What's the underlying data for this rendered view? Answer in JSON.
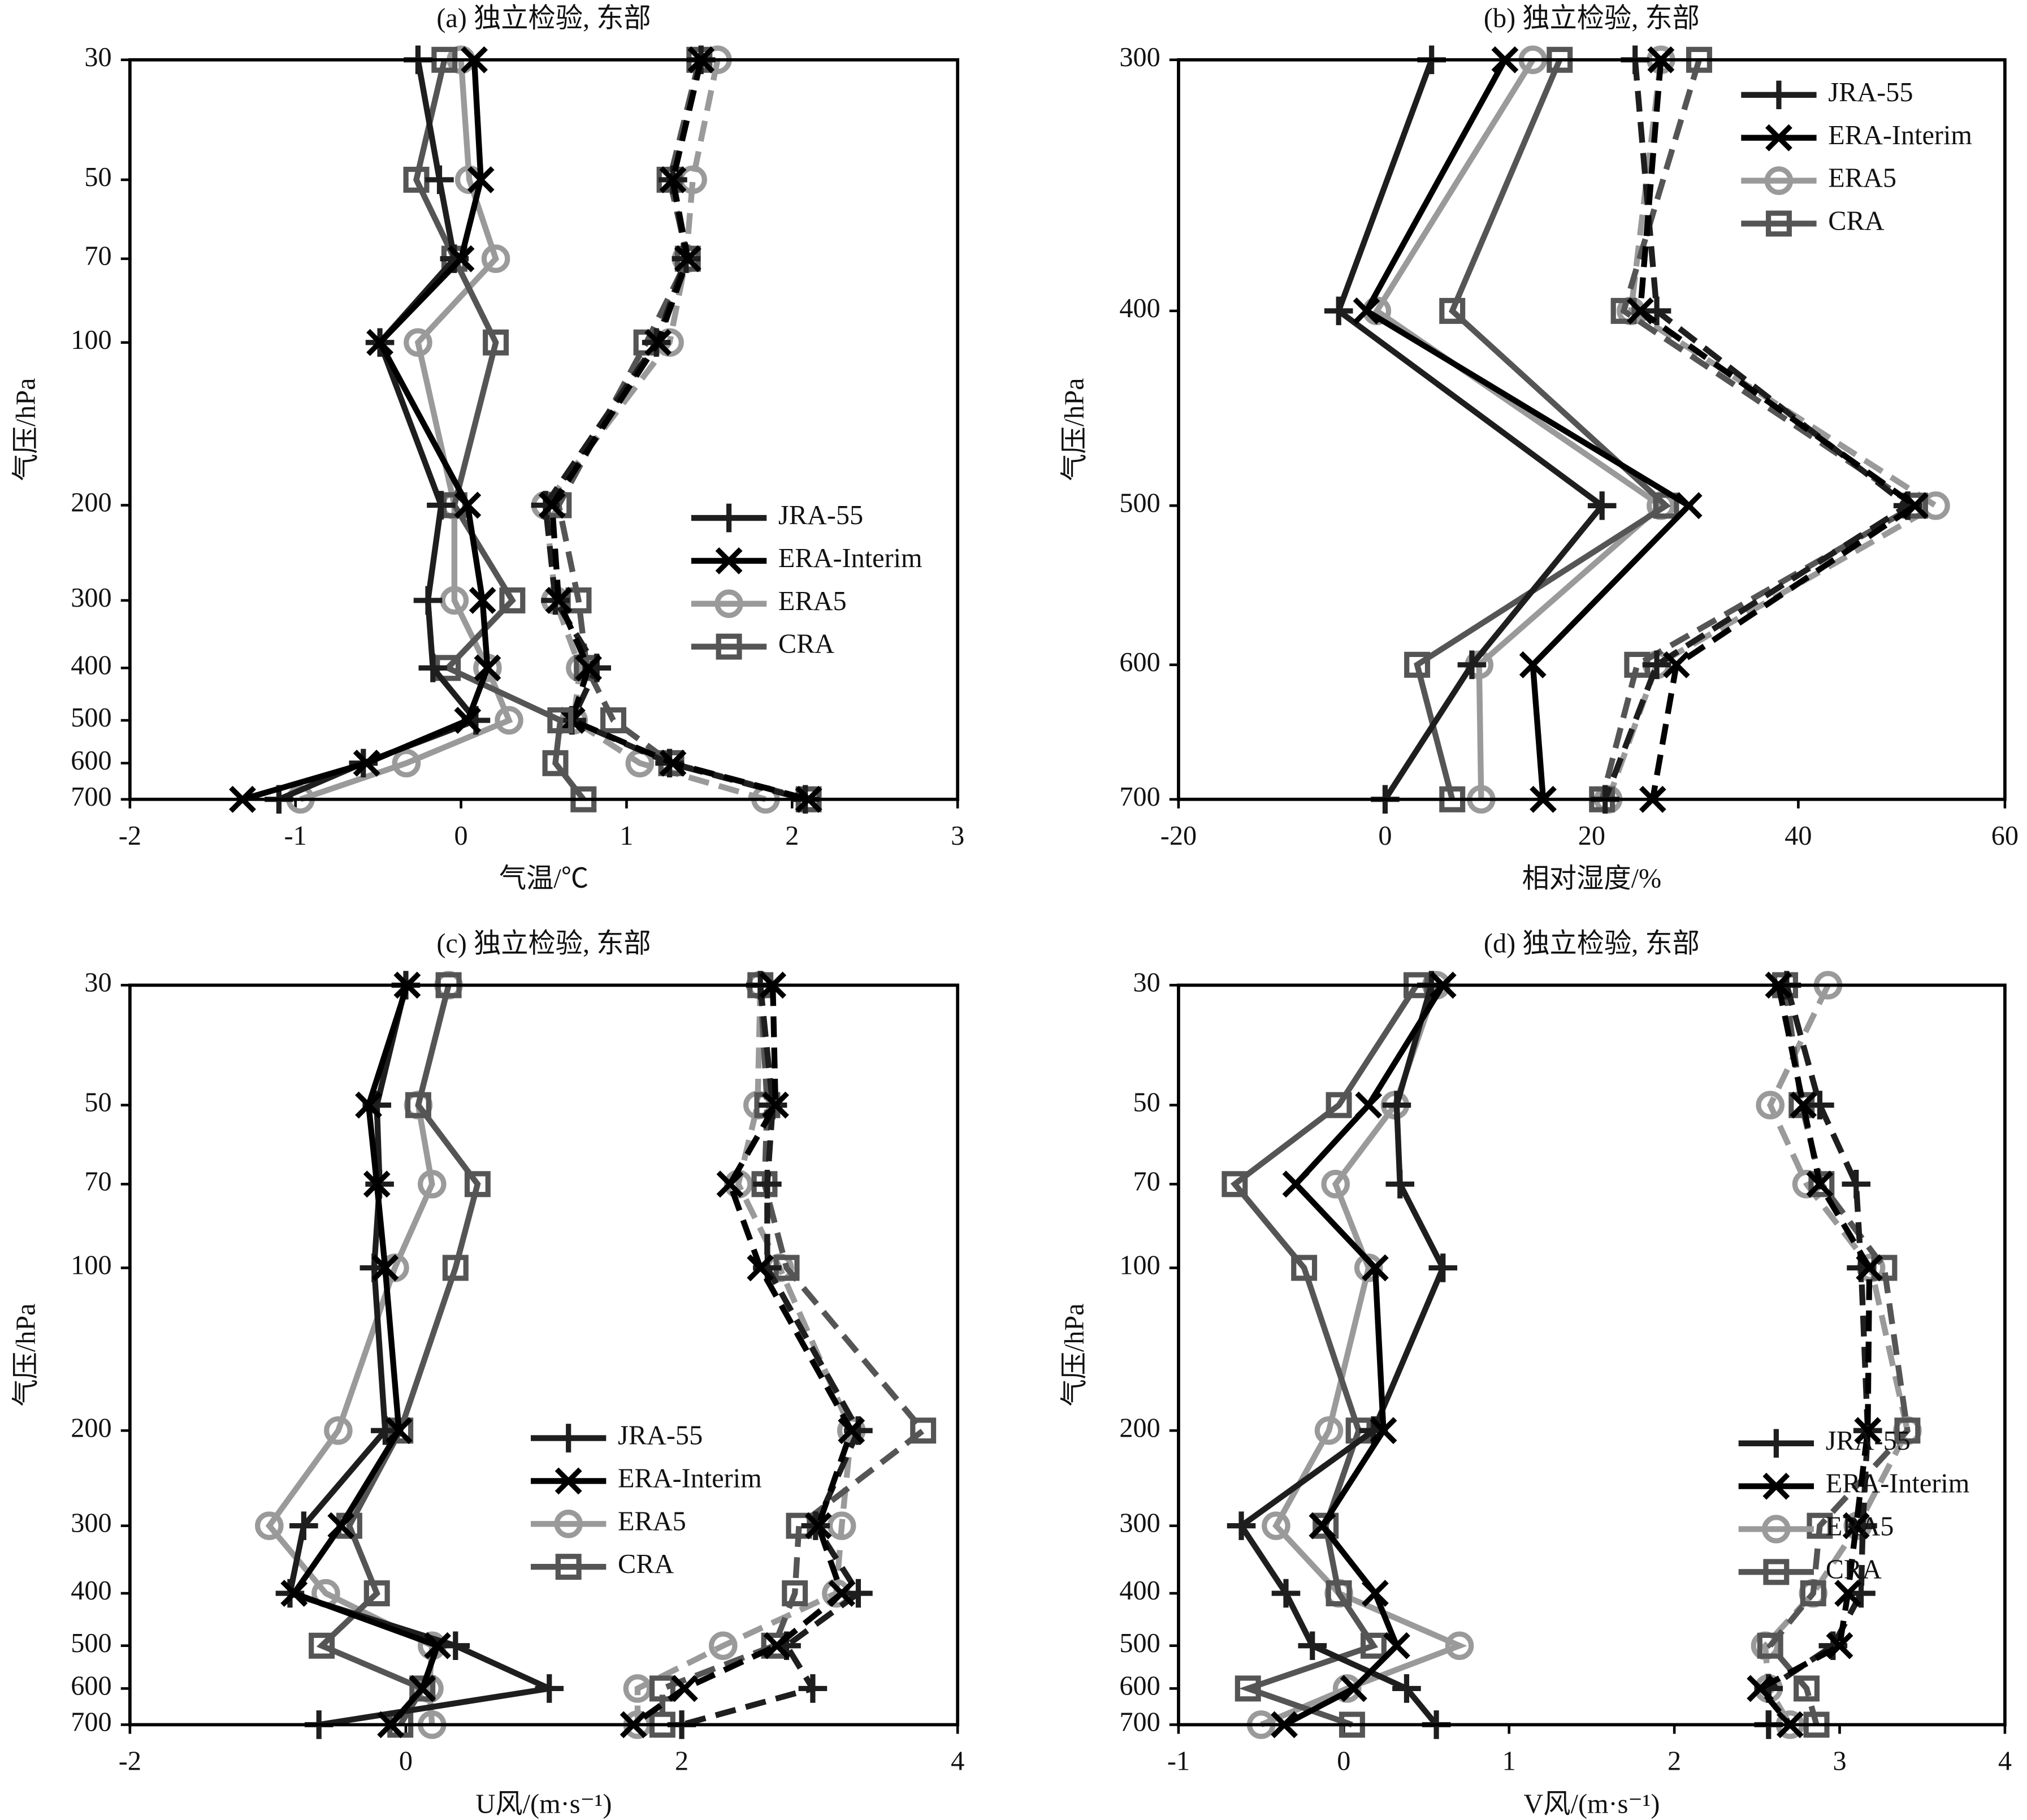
{
  "chart_data": [
    {
      "type": "line",
      "title": "(a) 独立检验, 东部",
      "xlabel": "气温/℃",
      "ylabel": "气压/hPa",
      "y": [
        30,
        50,
        70,
        100,
        200,
        300,
        400,
        500,
        600,
        700
      ],
      "xlim": [
        -2,
        3
      ],
      "xticks": [
        -2,
        -1,
        0,
        1,
        2,
        3
      ],
      "ylim": [
        700,
        30
      ],
      "yticks": [
        30,
        50,
        70,
        100,
        200,
        300,
        400,
        500,
        600,
        700
      ],
      "ylog": true,
      "legend_loc": "center right",
      "series": [
        {
          "name": "JRA-55",
          "color": "#1e1e1e",
          "marker": "plus",
          "values": [
            -0.26,
            -0.13,
            -0.04,
            -0.49,
            -0.12,
            -0.2,
            -0.17,
            0.09,
            -0.59,
            -1.1
          ],
          "values_dashed": [
            1.45,
            1.28,
            1.36,
            1.18,
            0.51,
            0.57,
            0.82,
            0.67,
            1.26,
            2.08
          ]
        },
        {
          "name": "ERA-Interim",
          "color": "#000000",
          "marker": "x",
          "values": [
            0.08,
            0.12,
            0.0,
            -0.49,
            0.04,
            0.13,
            0.16,
            0.04,
            -0.57,
            -1.32
          ],
          "values_dashed": [
            1.45,
            1.28,
            1.37,
            1.19,
            0.55,
            0.59,
            0.77,
            0.67,
            1.28,
            2.1
          ]
        },
        {
          "name": "ERA5",
          "color": "#9a9a9a",
          "marker": "circle",
          "values": [
            0.0,
            0.05,
            0.21,
            -0.26,
            -0.04,
            -0.04,
            0.16,
            0.29,
            -0.33,
            -0.97
          ],
          "values_dashed": [
            1.55,
            1.4,
            1.36,
            1.26,
            0.51,
            0.57,
            0.72,
            0.68,
            1.08,
            1.84
          ]
        },
        {
          "name": "CRA",
          "color": "#555555",
          "marker": "square",
          "values": [
            -0.1,
            -0.27,
            -0.04,
            0.21,
            -0.04,
            0.31,
            -0.08,
            0.6,
            0.57,
            0.74
          ],
          "values_dashed": [
            1.44,
            1.26,
            1.37,
            1.12,
            0.59,
            0.71,
            0.76,
            0.92,
            1.27,
            2.1
          ]
        }
      ]
    },
    {
      "type": "line",
      "title": "(b) 独立检验, 东部",
      "xlabel": "相对湿度/%",
      "ylabel": "气压/hPa",
      "y": [
        300,
        400,
        500,
        600,
        700
      ],
      "xlim": [
        -20,
        60
      ],
      "xticks": [
        -20,
        0,
        20,
        40,
        60
      ],
      "ylim": [
        700,
        300
      ],
      "yticks": [
        300,
        400,
        500,
        600,
        700
      ],
      "ylog": true,
      "legend_loc": "upper right",
      "series": [
        {
          "name": "JRA-55",
          "color": "#1e1e1e",
          "marker": "plus",
          "values": [
            4.5,
            -4.5,
            21,
            8.4,
            0
          ],
          "values_dashed": [
            24.2,
            26.3,
            50.6,
            26.3,
            21.3
          ]
        },
        {
          "name": "ERA-Interim",
          "color": "#000000",
          "marker": "x",
          "values": [
            11.6,
            -1.8,
            29.4,
            14.3,
            15.3
          ],
          "values_dashed": [
            26.7,
            24.7,
            51.3,
            28.2,
            25.9
          ]
        },
        {
          "name": "ERA5",
          "color": "#9a9a9a",
          "marker": "circle",
          "values": [
            14.3,
            -0.8,
            26.7,
            9.1,
            9.3
          ],
          "values_dashed": [
            26.7,
            23.8,
            53.3,
            26.3,
            21.6
          ]
        },
        {
          "name": "CRA",
          "color": "#555555",
          "marker": "square",
          "values": [
            16.9,
            6.5,
            27.2,
            3.1,
            6.5
          ],
          "values_dashed": [
            30.4,
            23.1,
            51.3,
            24.4,
            21
          ]
        }
      ]
    },
    {
      "type": "line",
      "title": "(c) 独立检验, 东部",
      "xlabel": "U风/(m·s⁻¹)",
      "ylabel": "气压/hPa",
      "y": [
        30,
        50,
        70,
        100,
        200,
        300,
        400,
        500,
        600,
        700
      ],
      "xlim": [
        -2,
        4
      ],
      "xticks": [
        -2,
        0,
        2,
        4
      ],
      "ylim": [
        700,
        30
      ],
      "yticks": [
        30,
        50,
        70,
        100,
        200,
        300,
        400,
        500,
        600,
        700
      ],
      "ylog": true,
      "legend_loc": "center",
      "series": [
        {
          "name": "JRA-55",
          "color": "#1e1e1e",
          "marker": "plus",
          "values": [
            0.0,
            -0.21,
            -0.19,
            -0.23,
            -0.15,
            -0.74,
            -0.84,
            0.36,
            1.04,
            -0.63
          ],
          "values_dashed": [
            2.57,
            2.66,
            2.62,
            2.62,
            3.28,
            2.97,
            3.28,
            2.76,
            2.95,
            2.0
          ]
        },
        {
          "name": "ERA-Interim",
          "color": "#000000",
          "marker": "x",
          "values": [
            0.01,
            -0.27,
            -0.21,
            -0.15,
            -0.05,
            -0.47,
            -0.81,
            0.23,
            0.12,
            -0.11
          ],
          "values_dashed": [
            2.66,
            2.68,
            2.35,
            2.57,
            3.23,
            2.99,
            3.16,
            2.69,
            2.02,
            1.65
          ]
        },
        {
          "name": "ERA5",
          "color": "#9a9a9a",
          "marker": "circle",
          "values": [
            0.31,
            0.09,
            0.19,
            -0.08,
            -0.49,
            -0.99,
            -0.58,
            0.19,
            0.17,
            0.19
          ],
          "values_dashed": [
            2.57,
            2.55,
            2.41,
            2.71,
            3.23,
            3.16,
            3.12,
            2.3,
            1.68,
            1.68
          ]
        },
        {
          "name": "CRA",
          "color": "#555555",
          "marker": "square",
          "values": [
            0.31,
            0.09,
            0.52,
            0.36,
            -0.04,
            -0.41,
            -0.21,
            -0.61,
            0.12,
            -0.04
          ],
          "values_dashed": [
            2.57,
            2.62,
            2.6,
            2.76,
            3.75,
            2.85,
            2.82,
            2.67,
            1.86,
            1.86
          ]
        }
      ]
    },
    {
      "type": "line",
      "title": "(d) 独立检验, 东部",
      "xlabel": "V风/(m·s⁻¹)",
      "ylabel": "气压/hPa",
      "y": [
        30,
        50,
        70,
        100,
        200,
        300,
        400,
        500,
        600,
        700
      ],
      "xlim": [
        -1,
        4
      ],
      "xticks": [
        -1,
        0,
        1,
        2,
        3,
        4
      ],
      "ylim": [
        700,
        30
      ],
      "yticks": [
        30,
        50,
        70,
        100,
        200,
        300,
        400,
        500,
        600,
        700
      ],
      "ylog": true,
      "legend_loc": "center right",
      "series": [
        {
          "name": "JRA-55",
          "color": "#1e1e1e",
          "marker": "plus",
          "values": [
            0.53,
            0.32,
            0.34,
            0.6,
            0.18,
            -0.62,
            -0.35,
            -0.19,
            0.38,
            0.56
          ],
          "values_dashed": [
            2.68,
            2.88,
            3.1,
            3.13,
            3.17,
            3.14,
            3.13,
            2.96,
            2.57,
            2.57
          ]
        },
        {
          "name": "ERA-Interim",
          "color": "#000000",
          "marker": "x",
          "values": [
            0.6,
            0.15,
            -0.29,
            0.19,
            0.24,
            -0.13,
            0.19,
            0.32,
            0.06,
            -0.36
          ],
          "values_dashed": [
            2.63,
            2.78,
            2.88,
            3.18,
            3.17,
            3.1,
            3.05,
            3.0,
            2.52,
            2.7
          ]
        },
        {
          "name": "ERA5",
          "color": "#9a9a9a",
          "marker": "circle",
          "values": [
            0.56,
            0.31,
            -0.05,
            0.15,
            -0.09,
            -0.41,
            -0.03,
            0.7,
            0.02,
            -0.5
          ],
          "values_dashed": [
            2.93,
            2.58,
            2.8,
            3.19,
            3.41,
            3.11,
            2.84,
            2.55,
            2.57,
            2.7
          ]
        },
        {
          "name": "CRA",
          "color": "#555555",
          "marker": "square",
          "values": [
            0.44,
            -0.03,
            -0.66,
            -0.24,
            0.09,
            -0.11,
            -0.03,
            0.18,
            -0.58,
            0.05
          ],
          "values_dashed": [
            2.67,
            2.77,
            2.89,
            3.27,
            3.41,
            2.88,
            2.84,
            2.58,
            2.8,
            2.86
          ]
        }
      ]
    }
  ]
}
